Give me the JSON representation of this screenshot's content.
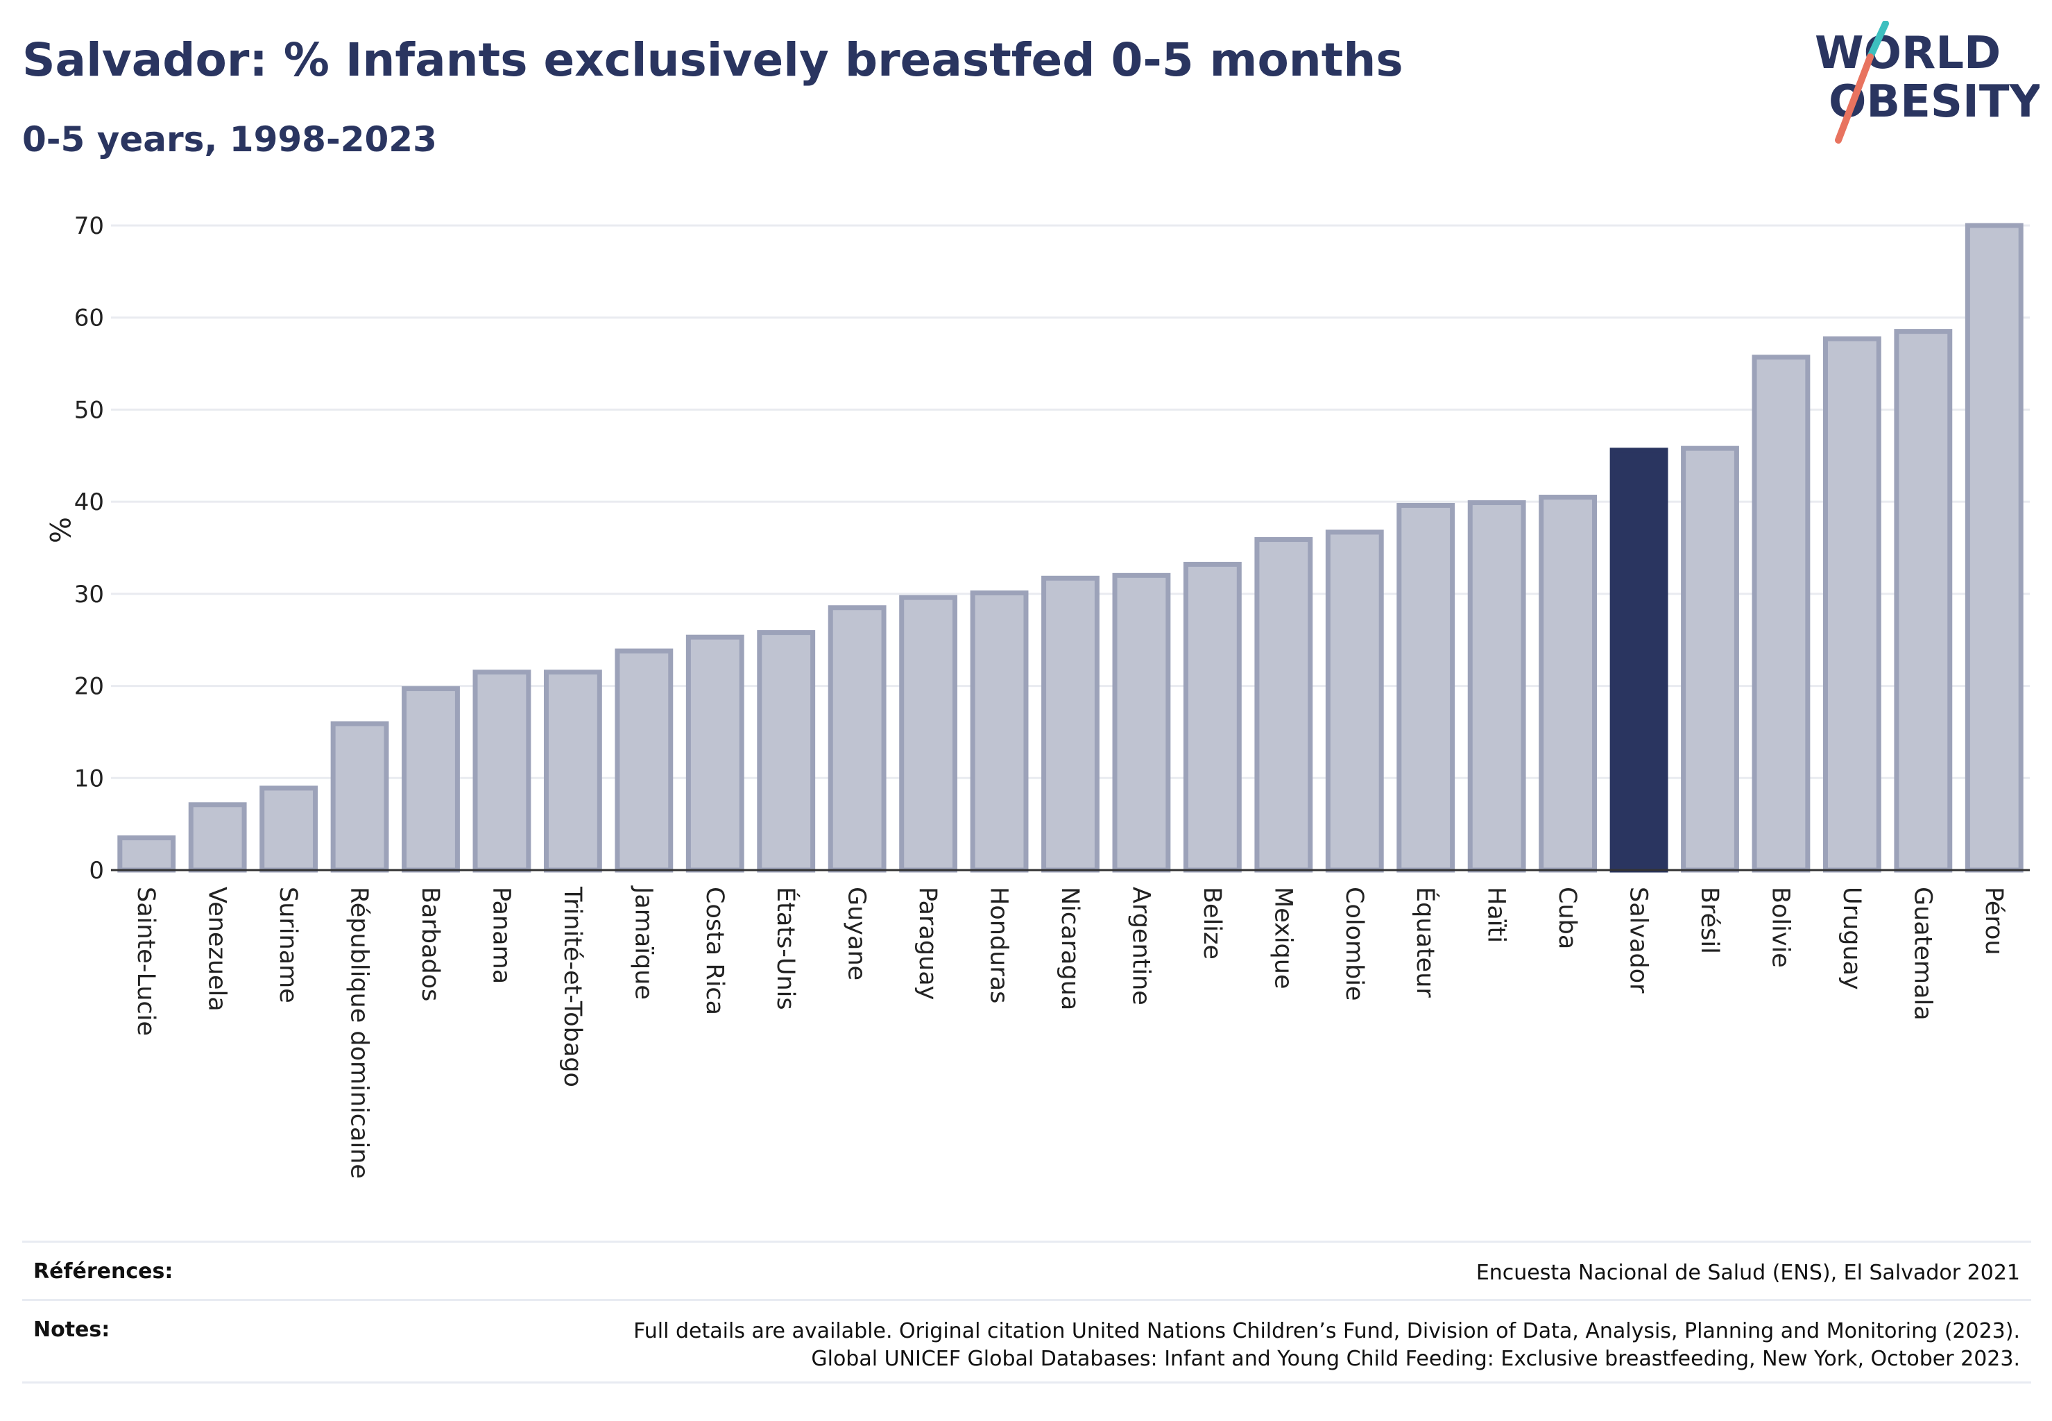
{
  "header": {
    "title": "Salvador: % Infants exclusively breastfed 0-5 months",
    "subtitle": "0-5 years, 1998-2023"
  },
  "logo": {
    "line1": "WORLD",
    "line2": "OBESITY",
    "text_color": "#2a3560",
    "slash_top_color": "#3dbfbf",
    "slash_bottom_color": "#e8735f"
  },
  "chart_data": {
    "type": "bar",
    "ylabel": "%",
    "ylim": [
      0,
      70
    ],
    "yticks": [
      0,
      10,
      20,
      30,
      40,
      50,
      60,
      70
    ],
    "grid": true,
    "highlight": "Salvador",
    "colors": {
      "bar_fill": "#bfc3d1",
      "bar_stroke": "#9ca2b9",
      "highlight": "#2a3560",
      "grid": "#e9ebf0",
      "axis": "#333333"
    },
    "categories": [
      "Sainte-Lucie",
      "Venezuela",
      "Suriname",
      "République dominicaine",
      "Barbados",
      "Panama",
      "Trinité-et-Tobago",
      "Jamaïque",
      "Costa Rica",
      "États-Unis",
      "Guyane",
      "Paraguay",
      "Honduras",
      "Nicaragua",
      "Argentine",
      "Belize",
      "Mexique",
      "Colombie",
      "Équateur",
      "Haïti",
      "Cuba",
      "Salvador",
      "Brésil",
      "Bolivie",
      "Uruguay",
      "Guatemala",
      "Pérou"
    ],
    "values": [
      3.5,
      7.1,
      8.9,
      15.9,
      19.7,
      21.5,
      21.5,
      23.8,
      25.3,
      25.8,
      28.5,
      29.6,
      30.1,
      31.7,
      32.0,
      33.2,
      35.9,
      36.7,
      39.6,
      39.9,
      40.5,
      45.6,
      45.8,
      55.7,
      57.7,
      58.5,
      70.0
    ]
  },
  "footer": {
    "references_label": "Références:",
    "references_text": "Encuesta Nacional de Salud (ENS), El Salvador 2021",
    "notes_label": "Notes:",
    "notes_line1": "Full details are available. Original citation United Nations Children’s Fund, Division of Data, Analysis, Planning and Monitoring (2023).",
    "notes_line2": "Global UNICEF Global Databases: Infant and Young Child Feeding: Exclusive breastfeeding, New York, October 2023."
  }
}
